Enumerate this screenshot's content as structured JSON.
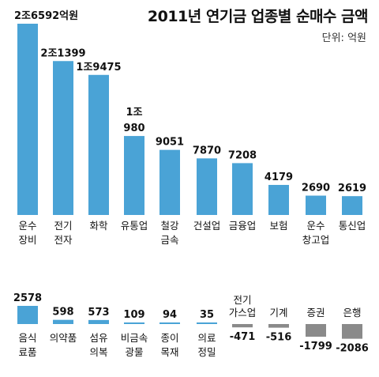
{
  "chart_data": [
    {
      "type": "bar",
      "title": "2011년 연기금 업종별 순매수 금액",
      "unit": "단위: 억원",
      "categories": [
        {
          "name": "운수 장비",
          "lines": [
            "운수",
            "장비"
          ],
          "value": 26592,
          "label_lines": [
            "2조6592억원"
          ]
        },
        {
          "name": "전기 전자",
          "lines": [
            "전기",
            "전자"
          ],
          "value": 21399,
          "label_lines": [
            "2조1399"
          ]
        },
        {
          "name": "화학",
          "lines": [
            "화학"
          ],
          "value": 19475,
          "label_lines": [
            "1조9475"
          ]
        },
        {
          "name": "유통업",
          "lines": [
            "유통업"
          ],
          "value": 10980,
          "label_lines": [
            "1조",
            "980"
          ]
        },
        {
          "name": "철강 금속",
          "lines": [
            "철강",
            "금속"
          ],
          "value": 9051,
          "label_lines": [
            "9051"
          ]
        },
        {
          "name": "건설업",
          "lines": [
            "건설업"
          ],
          "value": 7870,
          "label_lines": [
            "7870"
          ]
        },
        {
          "name": "금융업",
          "lines": [
            "금융업"
          ],
          "value": 7208,
          "label_lines": [
            "7208"
          ]
        },
        {
          "name": "보험",
          "lines": [
            "보험"
          ],
          "value": 4179,
          "label_lines": [
            "4179"
          ]
        },
        {
          "name": "운수 창고업",
          "lines": [
            "운수",
            "창고업"
          ],
          "value": 2690,
          "label_lines": [
            "2690"
          ]
        },
        {
          "name": "통신업",
          "lines": [
            "통신업"
          ],
          "value": 2619,
          "label_lines": [
            "2619"
          ]
        }
      ]
    },
    {
      "type": "bar",
      "categories": [
        {
          "name": "음식 료품",
          "lines": [
            "음식",
            "료품"
          ],
          "value": 2578,
          "label_lines": [
            "2578"
          ]
        },
        {
          "name": "의약품",
          "lines": [
            "의약품"
          ],
          "value": 598,
          "label_lines": [
            "598"
          ]
        },
        {
          "name": "섬유 의복",
          "lines": [
            "섬유",
            "의복"
          ],
          "value": 573,
          "label_lines": [
            "573"
          ]
        },
        {
          "name": "비금속 광물",
          "lines": [
            "비금속",
            "광물"
          ],
          "value": 109,
          "label_lines": [
            "109"
          ]
        },
        {
          "name": "종이 목재",
          "lines": [
            "종이",
            "목재"
          ],
          "value": 94,
          "label_lines": [
            "94"
          ]
        },
        {
          "name": "의료 정밀",
          "lines": [
            "의료",
            "정밀"
          ],
          "value": 35,
          "label_lines": [
            "35"
          ]
        },
        {
          "name": "전기 가스업",
          "lines": [
            "전기",
            "가스업"
          ],
          "value": -471,
          "label_lines": [
            "-471"
          ]
        },
        {
          "name": "기계",
          "lines": [
            "기계"
          ],
          "value": -516,
          "label_lines": [
            "-516"
          ]
        },
        {
          "name": "증권",
          "lines": [
            "증권"
          ],
          "value": -1799,
          "label_lines": [
            "-1799"
          ]
        },
        {
          "name": "은행",
          "lines": [
            "은행"
          ],
          "value": -2086,
          "label_lines": [
            "-2086"
          ]
        }
      ]
    }
  ],
  "colors": {
    "positive": "#4aa3d6",
    "negative": "#8a8a8a"
  }
}
